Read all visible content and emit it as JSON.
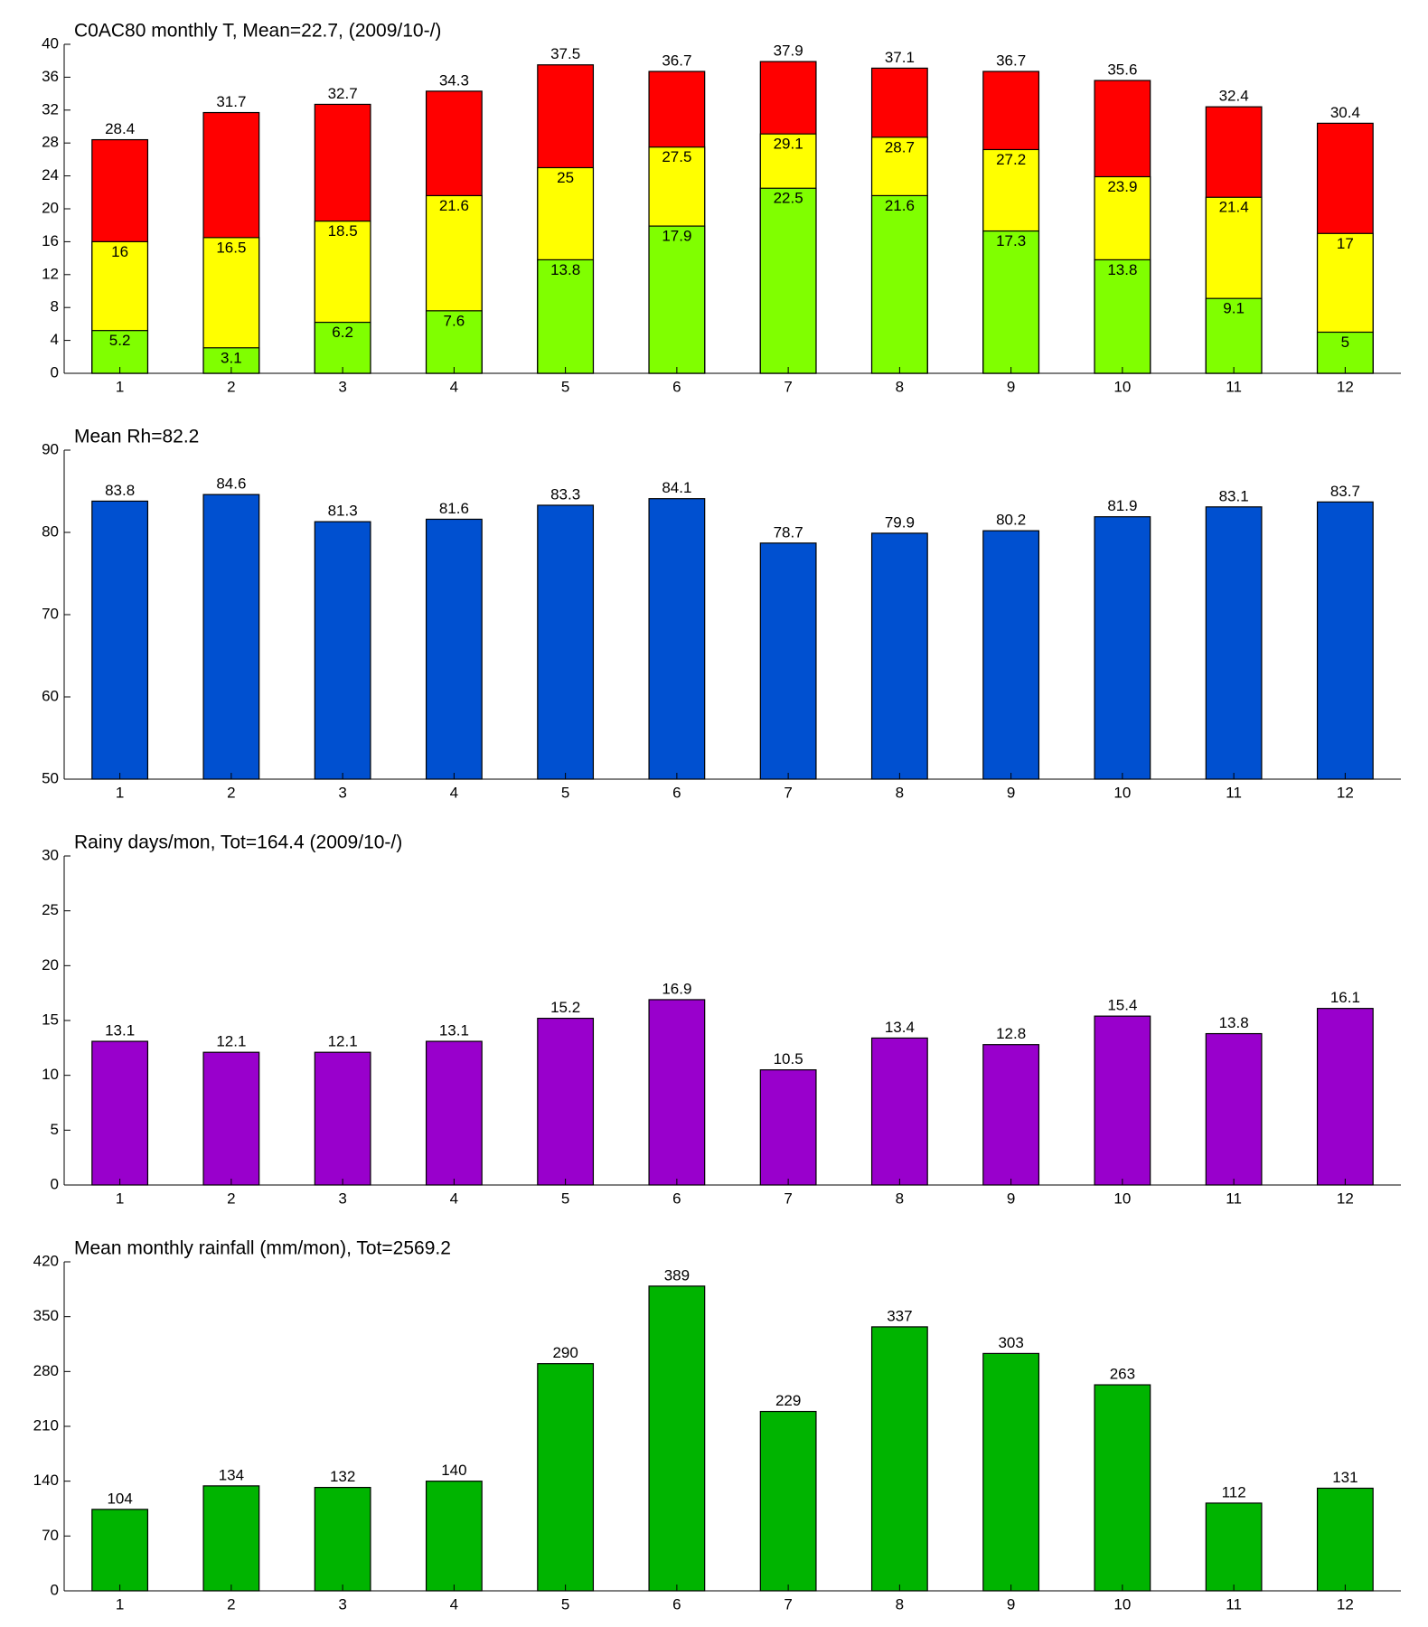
{
  "chart_data": [
    {
      "type": "bar",
      "title": "C0AC80 monthly T, Mean=22.7, (2009/10-/)",
      "categories": [
        "1",
        "2",
        "3",
        "4",
        "5",
        "6",
        "7",
        "8",
        "9",
        "10",
        "11",
        "12"
      ],
      "series": [
        {
          "color": "#ff0000",
          "values": [
            28.4,
            31.7,
            32.7,
            34.3,
            37.5,
            36.7,
            37.9,
            37.1,
            36.7,
            35.6,
            32.4,
            30.4
          ]
        },
        {
          "color": "#ffff00",
          "values": [
            16,
            16.5,
            18.5,
            21.6,
            25,
            27.5,
            29.1,
            28.7,
            27.2,
            23.9,
            21.4,
            17
          ]
        },
        {
          "color": "#80ff00",
          "values": [
            5.2,
            3.1,
            6.2,
            7.6,
            13.8,
            17.9,
            22.5,
            21.6,
            17.3,
            13.8,
            9.1,
            5
          ]
        }
      ],
      "ylim": [
        0,
        40
      ],
      "yticks": [
        0,
        4,
        8,
        12,
        16,
        20,
        24,
        28,
        32,
        36,
        40
      ]
    },
    {
      "type": "bar",
      "title": "Mean Rh=82.2",
      "categories": [
        "1",
        "2",
        "3",
        "4",
        "5",
        "6",
        "7",
        "8",
        "9",
        "10",
        "11",
        "12"
      ],
      "series": [
        {
          "color": "#0050d0",
          "values": [
            83.8,
            84.6,
            81.3,
            81.6,
            83.3,
            84.1,
            78.7,
            79.9,
            80.2,
            81.9,
            83.1,
            83.7
          ]
        }
      ],
      "ylim": [
        50,
        90
      ],
      "yticks": [
        50,
        60,
        70,
        80,
        90
      ]
    },
    {
      "type": "bar",
      "title": "Rainy days/mon, Tot=164.4 (2009/10-/)",
      "categories": [
        "1",
        "2",
        "3",
        "4",
        "5",
        "6",
        "7",
        "8",
        "9",
        "10",
        "11",
        "12"
      ],
      "series": [
        {
          "color": "#9900cc",
          "values": [
            13.1,
            12.1,
            12.1,
            13.1,
            15.2,
            16.9,
            10.5,
            13.4,
            12.8,
            15.4,
            13.8,
            16.1
          ]
        }
      ],
      "ylim": [
        0,
        30
      ],
      "yticks": [
        0,
        5,
        10,
        15,
        20,
        25,
        30
      ]
    },
    {
      "type": "bar",
      "title": "Mean monthly rainfall (mm/mon), Tot=2569.2",
      "categories": [
        "1",
        "2",
        "3",
        "4",
        "5",
        "6",
        "7",
        "8",
        "9",
        "10",
        "11",
        "12"
      ],
      "series": [
        {
          "color": "#00b400",
          "values": [
            104,
            134,
            132,
            140,
            290,
            389,
            229,
            337,
            303,
            263,
            112,
            131
          ]
        }
      ],
      "ylim": [
        0,
        420
      ],
      "yticks": [
        0,
        70,
        140,
        210,
        280,
        350,
        420
      ]
    }
  ]
}
